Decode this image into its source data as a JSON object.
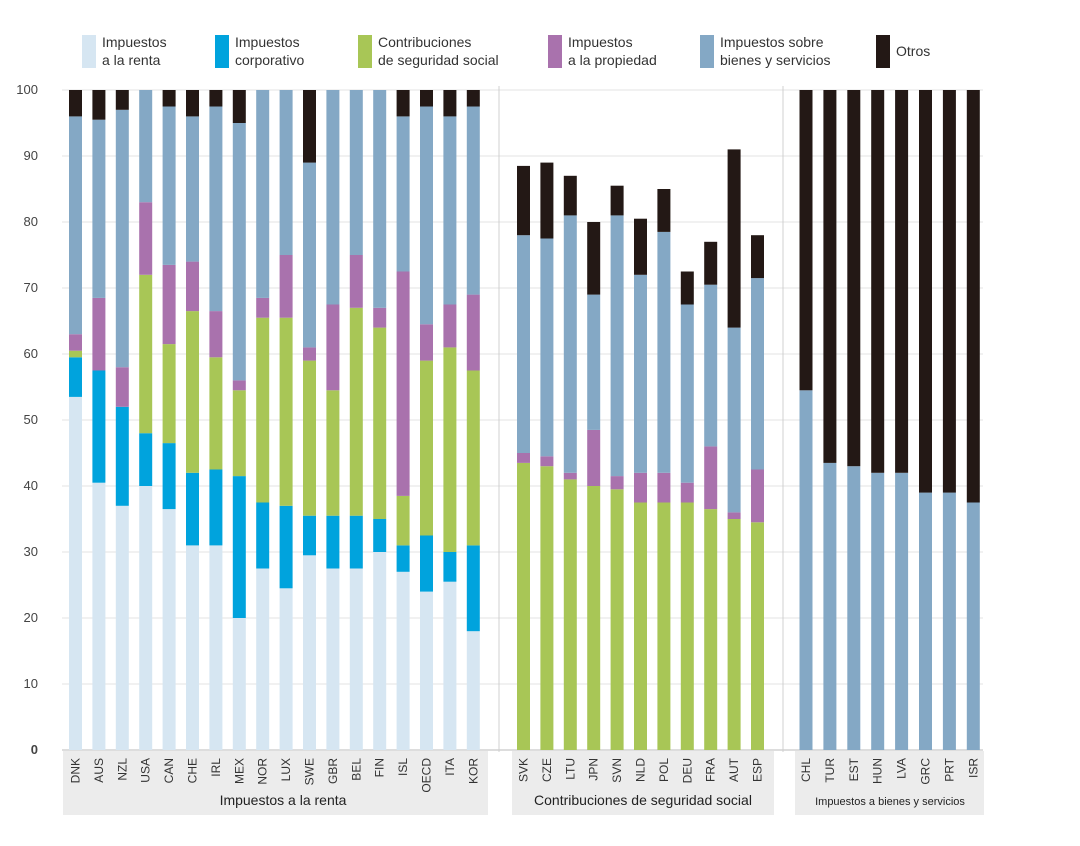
{
  "chart_data": {
    "type": "stacked-bar",
    "ylim": [
      0,
      100
    ],
    "yticks": [
      0,
      10,
      20,
      30,
      40,
      50,
      60,
      70,
      80,
      90,
      100
    ],
    "grid": true,
    "legend_position": "top",
    "series": [
      {
        "key": "renta",
        "name": "Impuestos\na la renta",
        "color": "#d6e6f2"
      },
      {
        "key": "corporativo",
        "name": "Impuestos\ncorporativo",
        "color": "#00a3dd"
      },
      {
        "key": "seguridad",
        "name": "Contribuciones\nde seguridad social",
        "color": "#a8c656"
      },
      {
        "key": "propiedad",
        "name": "Impuestos\na la propiedad",
        "color": "#a972ad"
      },
      {
        "key": "bienes",
        "name": "Impuestos sobre\nbienes y servicios",
        "color": "#84a8c5"
      },
      {
        "key": "otros",
        "name": "Otros",
        "color": "#231815"
      }
    ],
    "stack_order": [
      "renta",
      "corporativo",
      "seguridad",
      "propiedad",
      "bienes",
      "otros"
    ],
    "groups": [
      {
        "label": "Impuestos a la renta",
        "categories": [
          "DNK",
          "AUS",
          "NZL",
          "USA",
          "CAN",
          "CHE",
          "IRL",
          "MEX",
          "NOR",
          "LUX",
          "SWE",
          "GBR",
          "BEL",
          "FIN",
          "ISL",
          "OECD",
          "ITA",
          "KOR"
        ],
        "values": {
          "renta": [
            53.5,
            40.5,
            37,
            40,
            36.5,
            31,
            31,
            20,
            27.5,
            24.5,
            29.5,
            27.5,
            27.5,
            30,
            27,
            24,
            25.5,
            18
          ],
          "corporativo": [
            6,
            17,
            15,
            8,
            10,
            11,
            11.5,
            21.5,
            10,
            12.5,
            6,
            8,
            8,
            5,
            4,
            8.5,
            4.5,
            13
          ],
          "seguridad": [
            1,
            0,
            0,
            24,
            15,
            24.5,
            17,
            13,
            28,
            28.5,
            23.5,
            19,
            31.5,
            29,
            7.5,
            26.5,
            31,
            26.5
          ],
          "propiedad": [
            2.5,
            11,
            6,
            11,
            12,
            7.5,
            7,
            1.5,
            3,
            9.5,
            2,
            13,
            8,
            3,
            34,
            5.5,
            6.5,
            11.5
          ],
          "bienes": [
            33,
            27,
            39,
            17,
            24,
            22,
            31,
            39,
            31.5,
            25,
            28,
            32.5,
            25,
            33,
            23.5,
            33,
            28.5,
            28.5
          ],
          "otros": [
            4,
            4.5,
            3,
            0,
            2.5,
            4,
            2.5,
            5,
            0,
            0,
            11,
            0,
            0,
            0,
            4,
            2.5,
            4,
            2.5
          ]
        }
      },
      {
        "label": "Contribuciones de seguridad social",
        "categories": [
          "SVK",
          "CZE",
          "LTU",
          "JPN",
          "SVN",
          "NLD",
          "POL",
          "DEU",
          "FRA",
          "AUT",
          "ESP"
        ],
        "values": {
          "renta": [
            0,
            0,
            0,
            0,
            0,
            0,
            0,
            0,
            0,
            0,
            0
          ],
          "corporativo": [
            0,
            0,
            0,
            0,
            0,
            0,
            0,
            0,
            0,
            0,
            0
          ],
          "seguridad": [
            43.5,
            43,
            41,
            40,
            39.5,
            37.5,
            37.5,
            37.5,
            36.5,
            35,
            34.5
          ],
          "propiedad": [
            1.5,
            1.5,
            1,
            8.5,
            2,
            4.5,
            4.5,
            3,
            9.5,
            1,
            8
          ],
          "bienes": [
            33,
            33,
            39,
            20.5,
            39.5,
            30,
            36.5,
            27,
            24.5,
            28,
            29
          ],
          "otros": [
            10.5,
            11.5,
            6,
            11,
            4.5,
            8.5,
            6.5,
            5,
            6.5,
            27,
            6.5
          ]
        }
      },
      {
        "label": "Impuestos a bienes y servicios",
        "categories": [
          "CHL",
          "TUR",
          "EST",
          "HUN",
          "LVA",
          "GRC",
          "PRT",
          "ISR"
        ],
        "values": {
          "renta": [
            0,
            0,
            0,
            0,
            0,
            0,
            0,
            0
          ],
          "corporativo": [
            0,
            0,
            0,
            0,
            0,
            0,
            0,
            0
          ],
          "seguridad": [
            0,
            0,
            0,
            0,
            0,
            0,
            0,
            0
          ],
          "propiedad": [
            0,
            0,
            0,
            0,
            0,
            0,
            0,
            0
          ],
          "bienes": [
            54.5,
            43.5,
            43,
            42,
            42,
            39,
            39,
            37.5
          ],
          "otros": [
            45.5,
            56.5,
            57,
            58,
            58,
            61,
            61,
            62.5
          ]
        }
      }
    ]
  }
}
